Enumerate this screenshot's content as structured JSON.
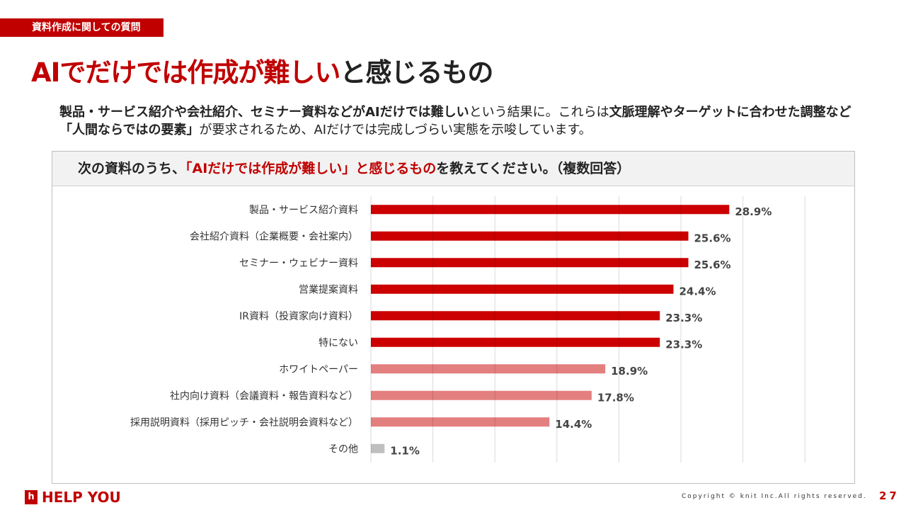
{
  "tag": "資料作成に関しての質問",
  "title": {
    "red": "AIでだけでは作成が難しい",
    "black": "と感じるもの"
  },
  "lead": {
    "p1": "製品・サービス紹介や会社紹介、セミナー資料などがAIだけでは難しい",
    "p2": "という結果に。これらは",
    "p3": "文脈理解やターゲットに合わせた調整など「人間ならではの要素」",
    "p4": "が要求されるため、AIだけでは完成しづらい実態を示唆しています。"
  },
  "question": {
    "pre": "次の資料のうち、",
    "red": "「AIだけでは作成が難しい」と感じるもの",
    "post": "を教えてください。（複数回答）"
  },
  "chart_data": {
    "type": "bar",
    "orientation": "horizontal",
    "categories": [
      "製品・サービス紹介資料",
      "会社紹介資料（企業概要・会社案内）",
      "セミナー・ウェビナー資料",
      "営業提案資料",
      "IR資料（投資家向け資料）",
      "特にない",
      "ホワイトペーパー",
      "社内向け資料（会議資料・報告資料など）",
      "採用説明資料（採用ピッチ・会社説明会資料など）",
      "その他"
    ],
    "values": [
      28.9,
      25.6,
      25.6,
      24.4,
      23.3,
      23.3,
      18.9,
      17.8,
      14.4,
      1.1
    ],
    "labels": [
      "28.9%",
      "25.6%",
      "25.6%",
      "24.4%",
      "23.3%",
      "23.3%",
      "18.9%",
      "17.8%",
      "14.4%",
      "1.1%"
    ],
    "colors": [
      "#cc0000",
      "#cc0000",
      "#cc0000",
      "#cc0000",
      "#cc0000",
      "#cc0000",
      "#e47f7f",
      "#e47f7f",
      "#e47f7f",
      "#bfbfbf"
    ],
    "xlim": [
      0,
      35
    ],
    "grid": true,
    "unit": "%"
  },
  "footer": {
    "logo": "HELP YOU",
    "logo_mark": "h",
    "copyright": "Copyright © knit Inc.All rights reserved.",
    "page": "27"
  }
}
